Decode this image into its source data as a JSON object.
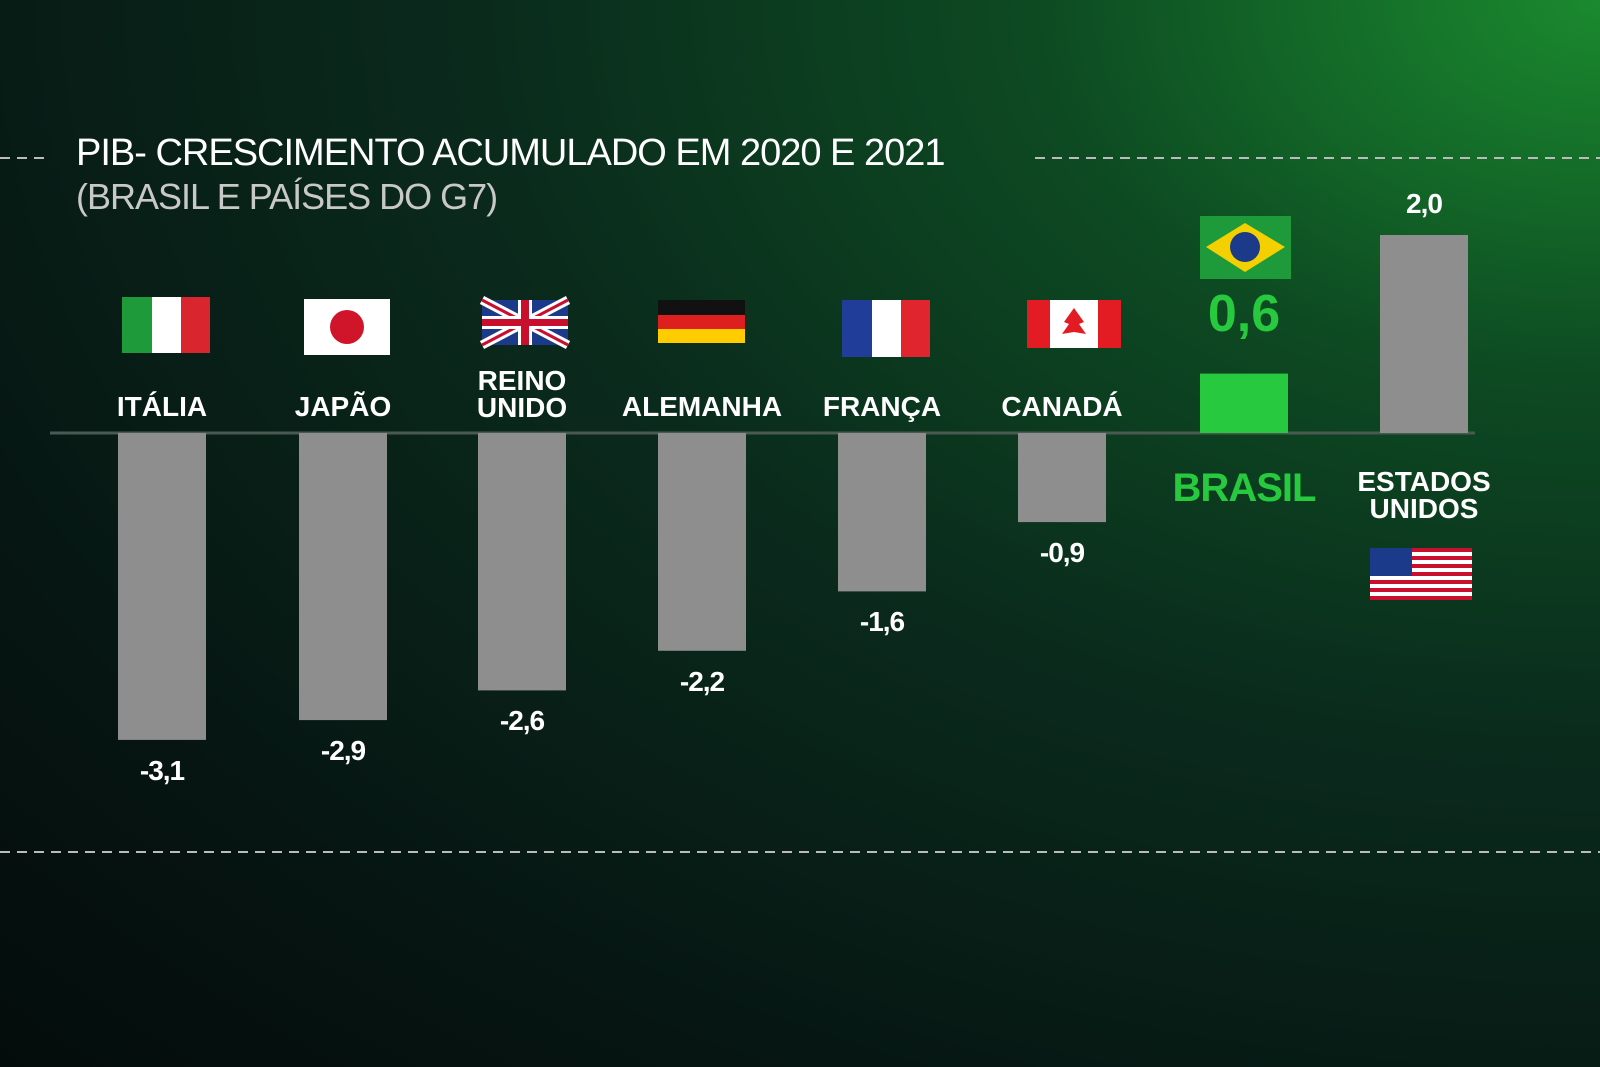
{
  "chart_data": {
    "type": "bar",
    "title": "PIB- CRESCIMENTO ACUMULADO EM 2020 E 2021",
    "subtitle": "(BRASIL E PAÍSES DO G7)",
    "categories": [
      "ITÁLIA",
      "JAPÃO",
      "REINO UNIDO",
      "ALEMANHA",
      "FRANÇA",
      "CANADÁ",
      "BRASIL",
      "ESTADOS UNIDOS"
    ],
    "values": [
      -3.1,
      -2.9,
      -2.6,
      -2.2,
      -1.6,
      -0.9,
      0.6,
      2.0
    ],
    "value_labels": [
      "-3,1",
      "-2,9",
      "-2,6",
      "-2,2",
      "-1,6",
      "-0,9",
      "0,6",
      "2,0"
    ],
    "colors": [
      "#8e8e8e",
      "#8e8e8e",
      "#8e8e8e",
      "#8e8e8e",
      "#8e8e8e",
      "#8e8e8e",
      "#27c93f",
      "#8e8e8e"
    ],
    "label_colors": [
      "#ffffff",
      "#ffffff",
      "#ffffff",
      "#ffffff",
      "#ffffff",
      "#ffffff",
      "#27c93f",
      "#ffffff"
    ],
    "ylim": [
      -3.5,
      2.5
    ]
  }
}
